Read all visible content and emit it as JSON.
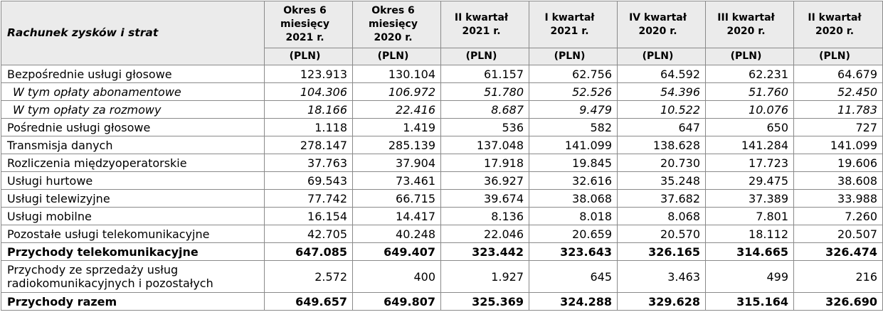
{
  "table": {
    "corner_label": "Rachunek zysków i strat",
    "columns": [
      {
        "line1": "Okres 6",
        "line2": "miesięcy",
        "line3": "2021 r."
      },
      {
        "line1": "Okres 6",
        "line2": "miesięcy",
        "line3": "2020 r."
      },
      {
        "line1": "II kwartał",
        "line2": "2021 r.",
        "line3": ""
      },
      {
        "line1": "I kwartał",
        "line2": "2021 r.",
        "line3": ""
      },
      {
        "line1": "IV kwartał",
        "line2": "2020 r.",
        "line3": ""
      },
      {
        "line1": "III kwartał",
        "line2": "2020 r.",
        "line3": ""
      },
      {
        "line1": "II kwartał",
        "line2": "2020 r.",
        "line3": ""
      }
    ],
    "units": [
      "(PLN)",
      "(PLN)",
      "(PLN)",
      "(PLN)",
      "(PLN)",
      "(PLN)",
      "(PLN)"
    ],
    "rows": [
      {
        "label": "Bezpośrednie usługi głosowe",
        "style": "normal",
        "values": [
          "123.913",
          "130.104",
          "61.157",
          "62.756",
          "64.592",
          "62.231",
          "64.679"
        ]
      },
      {
        "label": "W tym opłaty abonamentowe",
        "style": "italic",
        "values": [
          "104.306",
          "106.972",
          "51.780",
          "52.526",
          "54.396",
          "51.760",
          "52.450"
        ]
      },
      {
        "label": "W tym opłaty za rozmowy",
        "style": "italic",
        "values": [
          "18.166",
          "22.416",
          "8.687",
          "9.479",
          "10.522",
          "10.076",
          "11.783"
        ]
      },
      {
        "label": "Pośrednie usługi głosowe",
        "style": "normal",
        "values": [
          "1.118",
          "1.419",
          "536",
          "582",
          "647",
          "650",
          "727"
        ]
      },
      {
        "label": "Transmisja danych",
        "style": "normal",
        "values": [
          "278.147",
          "285.139",
          "137.048",
          "141.099",
          "138.628",
          "141.284",
          "141.099"
        ]
      },
      {
        "label": "Rozliczenia międzyoperatorskie",
        "style": "normal",
        "values": [
          "37.763",
          "37.904",
          "17.918",
          "19.845",
          "20.730",
          "17.723",
          "19.606"
        ]
      },
      {
        "label": "Usługi hurtowe",
        "style": "normal",
        "values": [
          "69.543",
          "73.461",
          "36.927",
          "32.616",
          "35.248",
          "29.475",
          "38.608"
        ]
      },
      {
        "label": "Usługi telewizyjne",
        "style": "normal",
        "values": [
          "77.742",
          "66.715",
          "39.674",
          "38.068",
          "37.682",
          "37.389",
          "33.988"
        ]
      },
      {
        "label": "Usługi mobilne",
        "style": "normal",
        "values": [
          "16.154",
          "14.417",
          "8.136",
          "8.018",
          "8.068",
          "7.801",
          "7.260"
        ]
      },
      {
        "label": "Pozostałe usługi telekomunikacyjne",
        "style": "normal",
        "values": [
          "42.705",
          "40.248",
          "22.046",
          "20.659",
          "20.570",
          "18.112",
          "20.507"
        ]
      },
      {
        "label": "Przychody telekomunikacyjne",
        "style": "bold",
        "values": [
          "647.085",
          "649.407",
          "323.442",
          "323.643",
          "326.165",
          "314.665",
          "326.474"
        ]
      },
      {
        "label": "Przychody ze sprzedaży usług radiokomunikacyjnych i pozostałych",
        "style": "two",
        "values": [
          "2.572",
          "400",
          "1.927",
          "645",
          "3.463",
          "499",
          "216"
        ]
      },
      {
        "label": "Przychody razem",
        "style": "bold",
        "values": [
          "649.657",
          "649.807",
          "325.369",
          "324.288",
          "329.628",
          "315.164",
          "326.690"
        ]
      }
    ]
  }
}
